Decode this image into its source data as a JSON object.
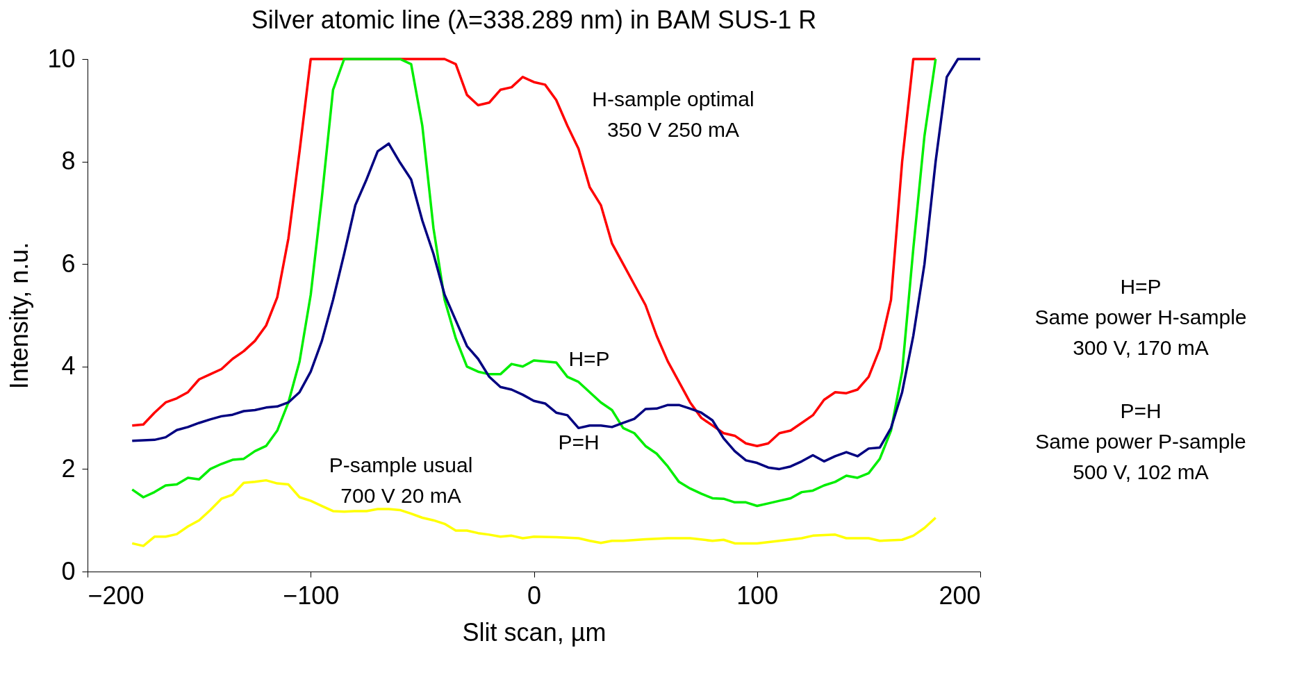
{
  "chart_data": {
    "type": "line",
    "title": "Silver atomic line (λ=338.289 nm) in BAM SUS-1 R",
    "xlabel": "Slit scan, µm",
    "ylabel": "Intensity, n.u.",
    "xlim": [
      -200,
      200
    ],
    "xticks": [
      -200,
      -100,
      0,
      100,
      200
    ],
    "ylim": [
      0,
      10
    ],
    "yticks": [
      0,
      2,
      4,
      6,
      8,
      10
    ],
    "grid": false,
    "marker": "none",
    "line_style": "solid",
    "series": [
      {
        "color": "#ff0000",
        "x": [
          -180,
          -175,
          -170,
          -165,
          -160,
          -155,
          -150,
          -145,
          -140,
          -135,
          -130,
          -125,
          -120,
          -115,
          -110,
          -105,
          -100,
          -95,
          -40,
          -35,
          -30,
          -25,
          -20,
          -15,
          -10,
          -5,
          0,
          5,
          10,
          15,
          20,
          25,
          30,
          35,
          40,
          45,
          50,
          55,
          60,
          65,
          70,
          75,
          80,
          85,
          90,
          95,
          100,
          105,
          110,
          115,
          120,
          125,
          130,
          135,
          140,
          145,
          150,
          155,
          160,
          165,
          170,
          180
        ],
        "values": [
          2.85,
          2.87,
          3.1,
          3.3,
          3.38,
          3.5,
          3.75,
          3.85,
          3.95,
          4.15,
          4.3,
          4.5,
          4.8,
          5.35,
          6.5,
          8.2,
          10,
          10,
          10,
          9.9,
          9.3,
          9.1,
          9.15,
          9.4,
          9.45,
          9.65,
          9.55,
          9.5,
          9.2,
          8.7,
          8.25,
          7.5,
          7.15,
          6.4,
          6.0,
          5.6,
          5.2,
          4.6,
          4.1,
          3.7,
          3.3,
          3.0,
          2.85,
          2.7,
          2.65,
          2.5,
          2.45,
          2.5,
          2.7,
          2.75,
          2.9,
          3.05,
          3.35,
          3.5,
          3.48,
          3.55,
          3.8,
          4.35,
          5.3,
          8.0,
          10,
          10
        ]
      },
      {
        "color": "#00ee00",
        "x": [
          -180,
          -175,
          -170,
          -165,
          -160,
          -155,
          -150,
          -145,
          -140,
          -135,
          -130,
          -125,
          -120,
          -115,
          -110,
          -105,
          -100,
          -95,
          -90,
          -85,
          -60,
          -55,
          -50,
          -45,
          -40,
          -35,
          -30,
          -25,
          -20,
          -15,
          -10,
          -5,
          0,
          5,
          10,
          15,
          20,
          25,
          30,
          35,
          40,
          45,
          50,
          55,
          60,
          65,
          70,
          75,
          80,
          85,
          90,
          95,
          100,
          105,
          110,
          115,
          120,
          125,
          130,
          135,
          140,
          145,
          150,
          155,
          160,
          165,
          170,
          175,
          180
        ],
        "values": [
          1.6,
          1.45,
          1.55,
          1.68,
          1.7,
          1.83,
          1.8,
          2.0,
          2.1,
          2.18,
          2.2,
          2.35,
          2.45,
          2.75,
          3.3,
          4.1,
          5.4,
          7.3,
          9.4,
          10,
          10,
          9.9,
          8.7,
          6.7,
          5.3,
          4.55,
          4.0,
          3.9,
          3.85,
          3.85,
          4.05,
          4.0,
          4.12,
          4.1,
          4.08,
          3.8,
          3.7,
          3.5,
          3.3,
          3.15,
          2.8,
          2.7,
          2.45,
          2.3,
          2.05,
          1.75,
          1.62,
          1.52,
          1.43,
          1.42,
          1.35,
          1.35,
          1.28,
          1.33,
          1.38,
          1.43,
          1.55,
          1.58,
          1.68,
          1.75,
          1.87,
          1.83,
          1.92,
          2.2,
          2.75,
          3.9,
          6.3,
          8.5,
          10
        ]
      },
      {
        "color": "#000080",
        "x": [
          -180,
          -170,
          -165,
          -160,
          -155,
          -150,
          -145,
          -140,
          -135,
          -130,
          -125,
          -120,
          -115,
          -110,
          -105,
          -100,
          -95,
          -90,
          -85,
          -80,
          -75,
          -70,
          -65,
          -60,
          -55,
          -50,
          -45,
          -40,
          -35,
          -30,
          -25,
          -20,
          -15,
          -10,
          -5,
          0,
          5,
          10,
          15,
          20,
          25,
          30,
          35,
          40,
          45,
          50,
          55,
          60,
          65,
          70,
          75,
          80,
          85,
          90,
          95,
          100,
          105,
          110,
          115,
          120,
          125,
          130,
          135,
          140,
          145,
          150,
          155,
          160,
          165,
          170,
          175,
          180,
          185,
          190,
          200
        ],
        "values": [
          2.55,
          2.57,
          2.62,
          2.76,
          2.82,
          2.9,
          2.97,
          3.03,
          3.06,
          3.13,
          3.15,
          3.2,
          3.22,
          3.3,
          3.5,
          3.9,
          4.5,
          5.3,
          6.2,
          7.15,
          7.65,
          8.2,
          8.35,
          7.98,
          7.65,
          6.85,
          6.2,
          5.4,
          4.9,
          4.4,
          4.15,
          3.8,
          3.6,
          3.55,
          3.45,
          3.33,
          3.28,
          3.1,
          3.05,
          2.8,
          2.85,
          2.85,
          2.82,
          2.9,
          2.98,
          3.17,
          3.18,
          3.25,
          3.25,
          3.18,
          3.1,
          2.95,
          2.6,
          2.35,
          2.17,
          2.12,
          2.03,
          2.0,
          2.05,
          2.15,
          2.27,
          2.15,
          2.25,
          2.33,
          2.25,
          2.4,
          2.42,
          2.8,
          3.5,
          4.6,
          6.0,
          8.0,
          9.65,
          10,
          10
        ]
      },
      {
        "color": "#ffff00",
        "x": [
          -180,
          -175,
          -170,
          -165,
          -160,
          -155,
          -150,
          -145,
          -140,
          -135,
          -130,
          -125,
          -120,
          -115,
          -110,
          -105,
          -100,
          -95,
          -90,
          -85,
          -80,
          -75,
          -70,
          -65,
          -60,
          -55,
          -50,
          -45,
          -40,
          -35,
          -30,
          -25,
          -20,
          -15,
          -10,
          -5,
          0,
          10,
          20,
          25,
          30,
          35,
          40,
          50,
          60,
          70,
          80,
          85,
          90,
          100,
          110,
          120,
          125,
          135,
          140,
          150,
          155,
          165,
          170,
          175,
          180
        ],
        "values": [
          0.55,
          0.5,
          0.68,
          0.68,
          0.73,
          0.88,
          1.0,
          1.2,
          1.42,
          1.5,
          1.73,
          1.75,
          1.78,
          1.72,
          1.7,
          1.45,
          1.38,
          1.28,
          1.18,
          1.17,
          1.18,
          1.18,
          1.22,
          1.22,
          1.2,
          1.13,
          1.05,
          1.0,
          0.93,
          0.8,
          0.8,
          0.75,
          0.72,
          0.68,
          0.7,
          0.65,
          0.68,
          0.67,
          0.65,
          0.6,
          0.56,
          0.6,
          0.6,
          0.63,
          0.65,
          0.65,
          0.6,
          0.62,
          0.55,
          0.55,
          0.6,
          0.65,
          0.7,
          0.72,
          0.65,
          0.65,
          0.6,
          0.62,
          0.7,
          0.85,
          1.05
        ]
      }
    ],
    "annotations": [
      "H-sample optimal\n350 V 250 mA",
      "H=P",
      "P=H",
      "P-sample usual\n700 V 20 mA",
      "H=P\nSame power H-sample\n300 V, 170 mA",
      "P=H\nSame power P-sample\n500 V, 102 mA"
    ]
  }
}
